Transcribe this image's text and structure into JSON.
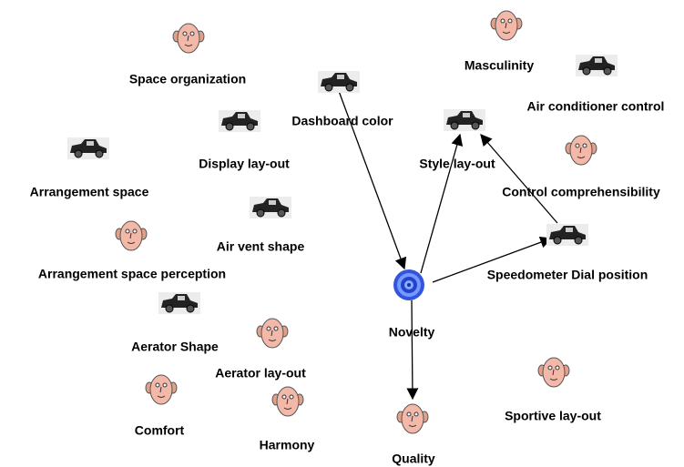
{
  "nodes": [
    {
      "label": "Space organization"
    },
    {
      "label": "Dashboard color"
    },
    {
      "label": "Masculinity"
    },
    {
      "label": "Air conditioner control"
    },
    {
      "label": "Display lay-out"
    },
    {
      "label": "Style lay-out"
    },
    {
      "label": "Arrangement space"
    },
    {
      "label": "Control comprehensibility"
    },
    {
      "label": "Air vent shape"
    },
    {
      "label": "Arrangement space perception"
    },
    {
      "label": "Speedometer Dial position"
    },
    {
      "label": "Novelty"
    },
    {
      "label": "Aerator Shape"
    },
    {
      "label": "Aerator lay-out"
    },
    {
      "label": "Sportive lay-out"
    },
    {
      "label": "Comfort"
    },
    {
      "label": "Harmony"
    },
    {
      "label": "Quality"
    }
  ]
}
